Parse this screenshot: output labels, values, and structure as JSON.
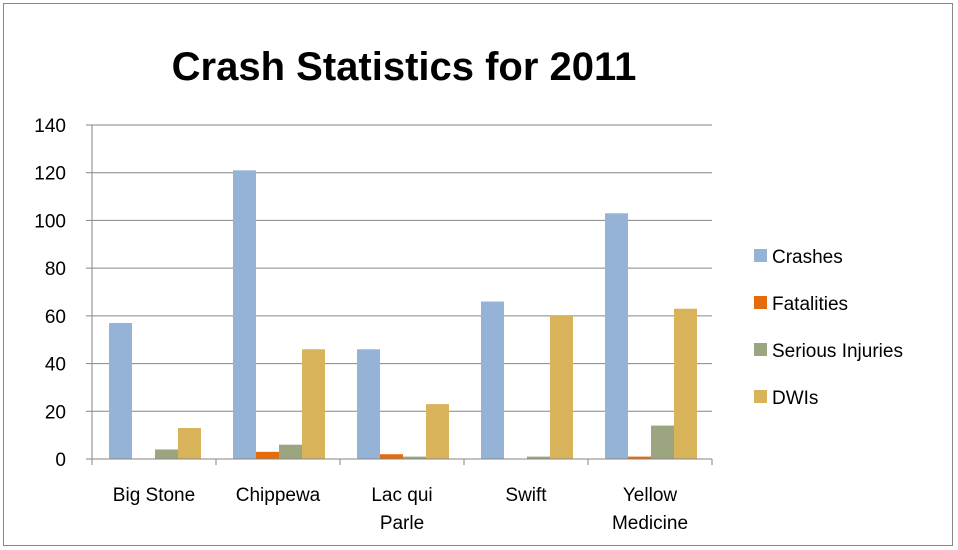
{
  "chart_data": {
    "type": "bar",
    "title": "Crash Statistics for 2011",
    "xlabel": "",
    "ylabel": "",
    "ylim": [
      0,
      140
    ],
    "y_ticks": [
      "0",
      "20",
      "40",
      "60",
      "80",
      "100",
      "120",
      "140"
    ],
    "categories": [
      "Big Stone",
      "Chippewa",
      "Lac qui Parle",
      "Swift",
      "Yellow Medicine"
    ],
    "category_label_lines": [
      [
        "Big Stone"
      ],
      [
        "Chippewa"
      ],
      [
        "Lac qui",
        "Parle"
      ],
      [
        "Swift"
      ],
      [
        "Yellow",
        "Medicine"
      ]
    ],
    "series": [
      {
        "name": "Crashes",
        "color": "#95B3D7",
        "values": [
          57,
          121,
          46,
          66,
          103
        ]
      },
      {
        "name": "Fatalities",
        "color": "#E46C0A",
        "values": [
          0,
          3,
          2,
          0,
          1
        ]
      },
      {
        "name": "Serious Injuries",
        "color": "#9BA57F",
        "values": [
          4,
          6,
          1,
          1,
          14
        ]
      },
      {
        "name": "DWIs",
        "color": "#D9B35A",
        "values": [
          13,
          46,
          23,
          60,
          63
        ]
      }
    ],
    "grid": true,
    "gridline_color": "#868686",
    "legend_position": "right"
  }
}
